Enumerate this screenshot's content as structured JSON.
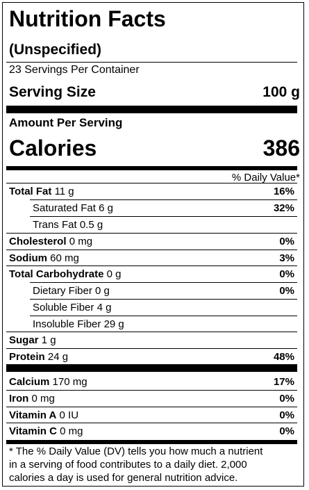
{
  "label": {
    "title": "Nutrition Facts",
    "product": "(Unspecified)",
    "servings": "23 Servings Per Container",
    "serving_size_label": "Serving Size",
    "serving_size_value": "100 g",
    "amount_per_serving": "Amount Per Serving",
    "calories_label": "Calories",
    "calories_value": "386",
    "daily_value_header": "% Daily Value*",
    "nutrients": [
      {
        "name": "Total Fat",
        "amount": "11 g",
        "dv": "16%"
      },
      {
        "name": "Saturated Fat",
        "amount": "6 g",
        "dv": "32%"
      },
      {
        "name": "Trans Fat",
        "amount": "0.5 g",
        "dv": ""
      },
      {
        "name": "Cholesterol",
        "amount": "0 mg",
        "dv": "0%"
      },
      {
        "name": "Sodium",
        "amount": "60 mg",
        "dv": "3%"
      },
      {
        "name": "Total Carbohydrate",
        "amount": "0 g",
        "dv": "0%"
      },
      {
        "name": "Dietary Fiber",
        "amount": "0 g",
        "dv": "0%"
      },
      {
        "name": "Soluble Fiber",
        "amount": "4 g",
        "dv": ""
      },
      {
        "name": "Insoluble Fiber",
        "amount": "29 g",
        "dv": ""
      },
      {
        "name": "Sugar",
        "amount": "1 g",
        "dv": ""
      },
      {
        "name": "Protein",
        "amount": "24 g",
        "dv": "48%"
      }
    ],
    "minerals": [
      {
        "name": "Calcium",
        "amount": "170 mg",
        "dv": "17%"
      },
      {
        "name": "Iron",
        "amount": "0 mg",
        "dv": "0%"
      },
      {
        "name": "Vitamin A",
        "amount": "0 IU",
        "dv": "0%"
      },
      {
        "name": "Vitamin C",
        "amount": "0 mg",
        "dv": "0%"
      }
    ],
    "footnote_lines": [
      "* The % Daily Value (DV) tells you how much a nutrient",
      "in a serving of food contributes to a daily diet. 2,000",
      "calories a day is used for general nutrition advice."
    ]
  }
}
